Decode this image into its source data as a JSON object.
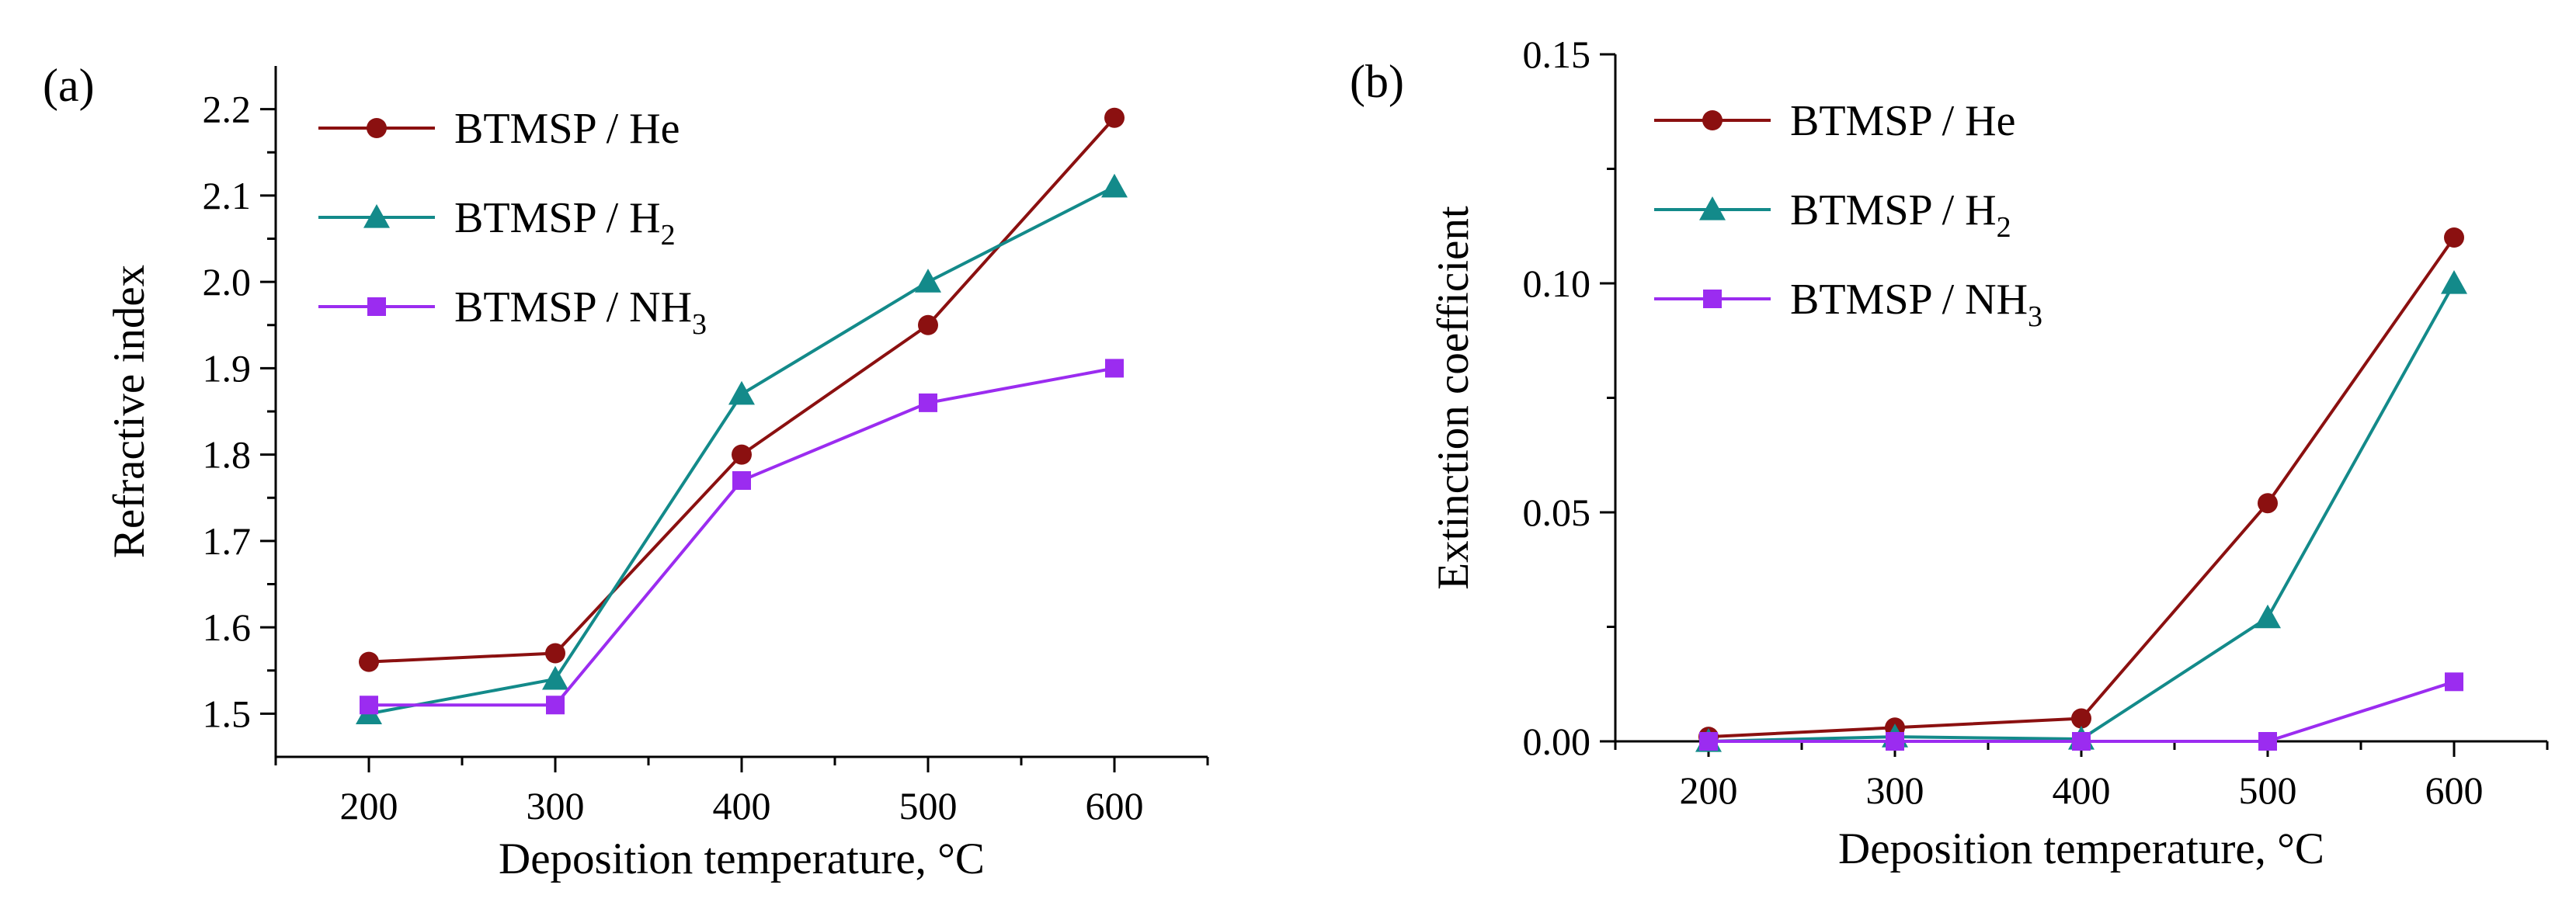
{
  "chart_data": [
    {
      "type": "line",
      "panel_label": "(a)",
      "title": "",
      "xlabel": "Deposition temperature, °C",
      "ylabel": "Refractive index",
      "x": [
        200,
        300,
        400,
        500,
        600
      ],
      "xlim": [
        150,
        650
      ],
      "ylim": [
        1.45,
        2.25
      ],
      "xticks": [
        200,
        300,
        400,
        500,
        600
      ],
      "yticks": [
        1.5,
        1.6,
        1.7,
        1.8,
        1.9,
        2.0,
        2.1,
        2.2
      ],
      "ytick_labels": [
        "1.5",
        "1.6",
        "1.7",
        "1.8",
        "1.9",
        "2.0",
        "2.1",
        "2.2"
      ],
      "legend_position": "top-left",
      "series": [
        {
          "name": "BTMSP / He",
          "label_main": "BTMSP / He",
          "label_sub": "",
          "color": "#8b1010",
          "marker": "circle",
          "values": [
            1.56,
            1.57,
            1.8,
            1.95,
            2.19
          ]
        },
        {
          "name": "BTMSP / H2",
          "label_main": "BTMSP / H",
          "label_sub": "2",
          "color": "#138a8a",
          "marker": "triangle",
          "values": [
            1.5,
            1.54,
            1.87,
            2.0,
            2.11
          ]
        },
        {
          "name": "BTMSP / NH3",
          "label_main": "BTMSP / NH",
          "label_sub": "3",
          "color": "#9b2cf0",
          "marker": "square",
          "values": [
            1.51,
            1.51,
            1.77,
            1.86,
            1.9
          ]
        }
      ]
    },
    {
      "type": "line",
      "panel_label": "(b)",
      "title": "",
      "xlabel": "Deposition temperature, °C",
      "ylabel": "Extinction coefficient",
      "x": [
        200,
        300,
        400,
        500,
        600
      ],
      "xlim": [
        150,
        650
      ],
      "ylim": [
        0,
        0.15
      ],
      "xticks": [
        200,
        300,
        400,
        500,
        600
      ],
      "yticks": [
        0,
        0.05,
        0.1,
        0.15
      ],
      "ytick_labels": [
        "0.00",
        "0.05",
        "0.10",
        "0.15"
      ],
      "legend_position": "top-left",
      "series": [
        {
          "name": "BTMSP / He",
          "label_main": "BTMSP / He",
          "label_sub": "",
          "color": "#8b1010",
          "marker": "circle",
          "values": [
            0.001,
            0.003,
            0.005,
            0.052,
            0.11
          ]
        },
        {
          "name": "BTMSP / H2",
          "label_main": "BTMSP / H",
          "label_sub": "2",
          "color": "#138a8a",
          "marker": "triangle",
          "values": [
            0.0,
            0.001,
            0.0005,
            0.027,
            0.1
          ]
        },
        {
          "name": "BTMSP / NH3",
          "label_main": "BTMSP / NH",
          "label_sub": "3",
          "color": "#9b2cf0",
          "marker": "square",
          "values": [
            0.0,
            0.0,
            0.0,
            0.0,
            0.013
          ]
        }
      ]
    }
  ]
}
